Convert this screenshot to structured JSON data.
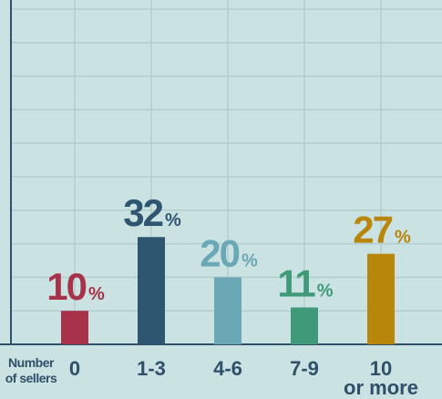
{
  "chart_data": {
    "type": "bar",
    "x_label": "Number of sellers",
    "categories": [
      "0",
      "1-3",
      "4-6",
      "7-9",
      "10 or more"
    ],
    "values": [
      10,
      32,
      20,
      11,
      27
    ],
    "value_labels": [
      "10%",
      "32%",
      "20%",
      "11%",
      "27%"
    ],
    "colors": [
      "#a8324a",
      "#2e5670",
      "#6aa8b6",
      "#3e9a78",
      "#b8860b"
    ],
    "ylim": [
      0,
      100
    ],
    "yticks": [
      0,
      10,
      20,
      30,
      40,
      50,
      60,
      70,
      80,
      90,
      100
    ],
    "grid": true
  }
}
